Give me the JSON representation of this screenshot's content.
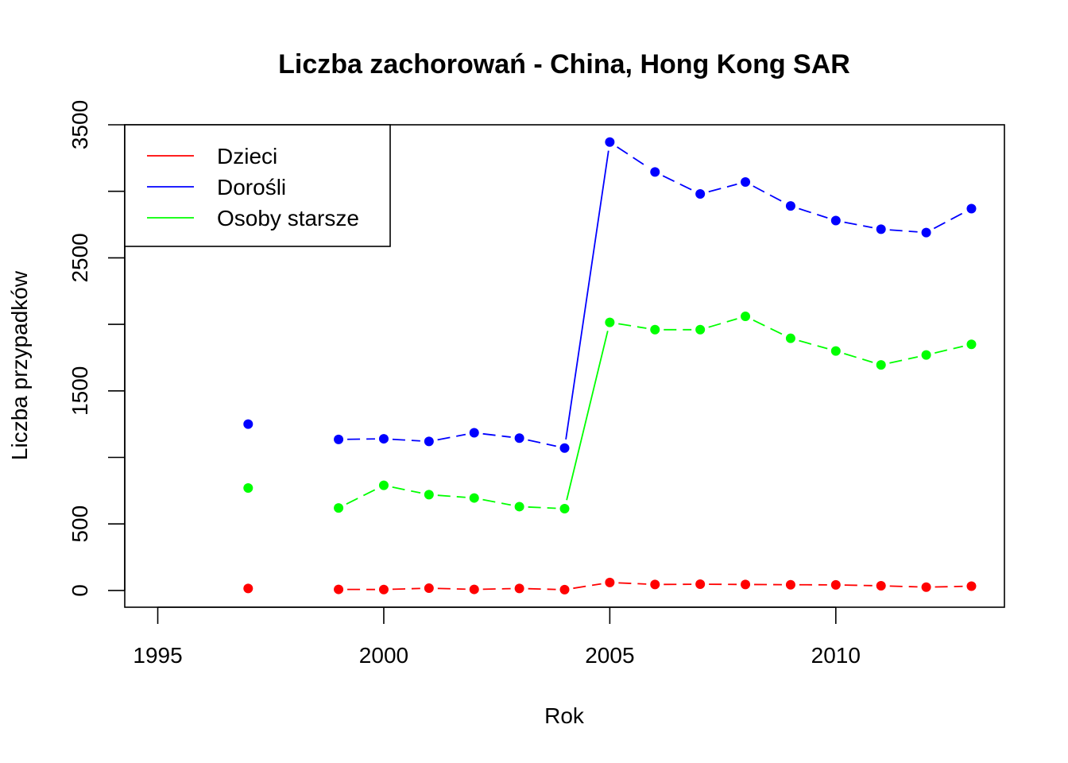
{
  "chart_data": {
    "type": "line",
    "title": "Liczba zachorowań -  China, Hong Kong SAR",
    "xlabel": "Rok",
    "ylabel": "Liczba przypadków",
    "xlim": [
      1994.27,
      2013.73
    ],
    "ylim": [
      -126,
      3500
    ],
    "x_ticks": [
      1995,
      2000,
      2005,
      2010
    ],
    "y_ticks": [
      0,
      500,
      1000,
      1500,
      2000,
      2500,
      3000,
      3500
    ],
    "y_tick_labels": [
      "0",
      "500",
      "",
      "1500",
      "",
      "2500",
      "",
      "3500"
    ],
    "legend_position": "top-left",
    "x": [
      1997,
      1999,
      2000,
      2001,
      2002,
      2003,
      2004,
      2005,
      2006,
      2007,
      2008,
      2009,
      2010,
      2011,
      2012,
      2013
    ],
    "series": [
      {
        "name": "Dzieci",
        "color": "#ff0000",
        "values": [
          15,
          8,
          7,
          17,
          8,
          15,
          6,
          60,
          45,
          47,
          45,
          43,
          42,
          35,
          25,
          32
        ]
      },
      {
        "name": "Dorośli",
        "color": "#0000ff",
        "values": [
          1250,
          1135,
          1140,
          1120,
          1185,
          1145,
          1070,
          3370,
          3145,
          2980,
          3070,
          2890,
          2780,
          2715,
          2690,
          2870
        ]
      },
      {
        "name": "Osoby starsze",
        "color": "#00ff00",
        "values": [
          770,
          620,
          790,
          720,
          695,
          630,
          615,
          2015,
          1960,
          1960,
          2060,
          1895,
          1800,
          1695,
          1770,
          1850
        ]
      }
    ]
  }
}
